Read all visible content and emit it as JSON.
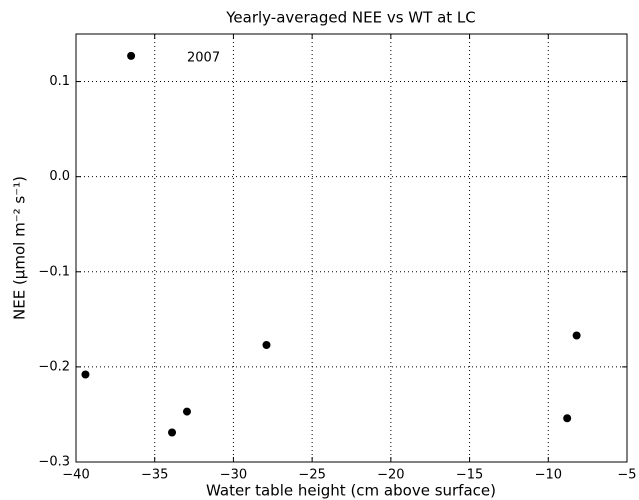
{
  "chart_data": {
    "type": "scatter",
    "title": "Yearly-averaged NEE vs WT at LC",
    "x_label": "Water table height (cm above surface)",
    "y_label": "NEE (μmol m⁻² s⁻¹)",
    "x": [
      -36.5,
      -39.4,
      -33.9,
      -32.95,
      -27.9,
      -8.8,
      -8.2
    ],
    "values": [
      0.127,
      -0.208,
      -0.269,
      -0.247,
      -0.177,
      -0.254,
      -0.167
    ],
    "color": "#000000",
    "xlim": [
      -40,
      -5
    ],
    "ylim": [
      -0.3,
      0.15
    ],
    "xticks": [
      {
        "value": -40,
        "label": "−40"
      },
      {
        "value": -35,
        "label": "−35"
      },
      {
        "value": -30,
        "label": "−30"
      },
      {
        "value": -25,
        "label": "−25"
      },
      {
        "value": -20,
        "label": "−20"
      },
      {
        "value": -15,
        "label": "−15"
      },
      {
        "value": -10,
        "label": "−10"
      },
      {
        "value": -5,
        "label": "−5"
      }
    ],
    "yticks": [
      {
        "value": -0.3,
        "label": "−0.3"
      },
      {
        "value": -0.2,
        "label": "−0.2"
      },
      {
        "value": -0.1,
        "label": "−0.1"
      },
      {
        "value": 0.0,
        "label": "0.0"
      },
      0.1
    ],
    "grid": true,
    "annotation": "2007"
  }
}
